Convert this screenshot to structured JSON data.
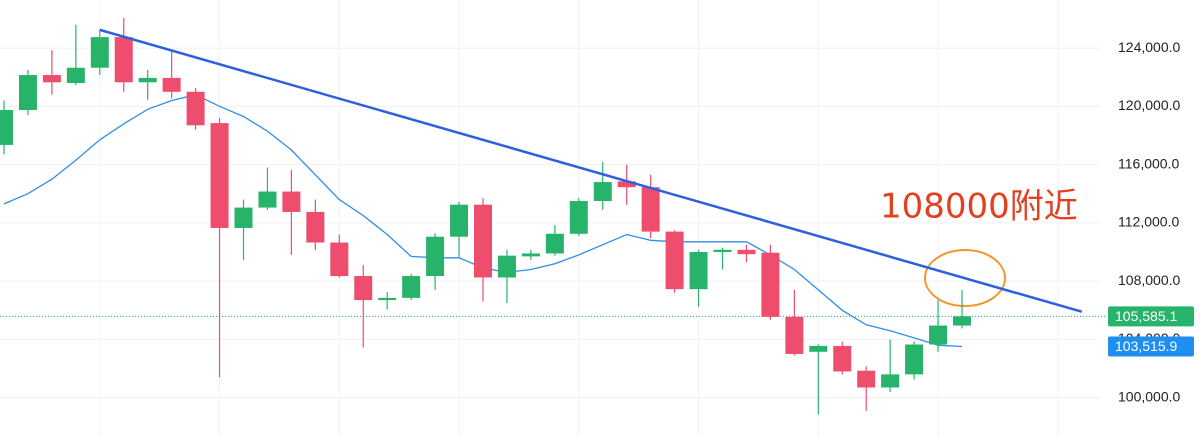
{
  "chart_data": {
    "type": "candlestick",
    "up_color": "#27b46a",
    "down_color": "#ee4d6d",
    "open": [
      117350,
      119750,
      122150,
      121600,
      122650,
      124750,
      121650,
      121950,
      121000,
      118850,
      111650,
      113050,
      114150,
      112750,
      110650,
      108350,
      106700,
      106850,
      108350,
      111050,
      113250,
      108250,
      109700,
      109900,
      111250,
      113500,
      114850,
      114450,
      111400,
      107450,
      110000,
      110150,
      109950,
      105550,
      103150,
      103550,
      101850,
      100700,
      101600,
      103650,
      104950
    ],
    "high": [
      120400,
      122500,
      123850,
      125600,
      125250,
      126050,
      122500,
      123850,
      121250,
      119200,
      113600,
      115800,
      115650,
      113600,
      111200,
      109100,
      107250,
      108500,
      111300,
      113450,
      113700,
      110150,
      110150,
      111850,
      113700,
      116200,
      116000,
      115300,
      111500,
      110150,
      110300,
      110500,
      110500,
      107400,
      103650,
      103850,
      102150,
      104000,
      103850,
      106700,
      107400
    ],
    "low": [
      116700,
      119400,
      120800,
      121450,
      122150,
      121000,
      120450,
      120550,
      118400,
      101400,
      109450,
      112900,
      109800,
      110150,
      108250,
      103450,
      106050,
      106700,
      107400,
      109600,
      106600,
      106500,
      109450,
      109750,
      111100,
      112900,
      113250,
      110950,
      107200,
      106250,
      108800,
      109300,
      105350,
      102900,
      98850,
      101600,
      99100,
      100400,
      101250,
      103150,
      104750
    ],
    "close": [
      119750,
      122150,
      121650,
      122650,
      124750,
      121650,
      121950,
      121000,
      118700,
      111650,
      113050,
      114150,
      112750,
      110650,
      108350,
      106700,
      106850,
      108350,
      111050,
      113250,
      108250,
      109750,
      109900,
      111250,
      113500,
      114800,
      114450,
      111400,
      107450,
      110000,
      110150,
      109850,
      105550,
      103000,
      103550,
      101800,
      100700,
      101600,
      103650,
      104950,
      105585.1
    ],
    "close_label": "105,585.1",
    "ma": {
      "color": "#2f8fe6",
      "label": "103,515.9",
      "values": [
        113300,
        114000,
        115000,
        116300,
        117700,
        118800,
        119800,
        120400,
        120800,
        120000,
        119300,
        118300,
        117000,
        115300,
        113600,
        112500,
        111200,
        109700,
        109600,
        109600,
        108900,
        108600,
        108800,
        109200,
        109800,
        110500,
        111200,
        110800,
        110700,
        110700,
        110700,
        110700,
        109800,
        108800,
        107400,
        106000,
        105000,
        104600,
        104100,
        103600,
        103515.9
      ]
    },
    "trendline": {
      "color": "#2f5fe0",
      "x": [
        4,
        45
      ],
      "values": [
        125250,
        105900
      ]
    },
    "annotation": "108000附近",
    "ylim": [
      97300,
      127300
    ],
    "yticks": [
      {
        "value": 100000,
        "label": "100,000.0"
      },
      {
        "value": 104000,
        "label": "104,000.0"
      },
      {
        "value": 108000,
        "label": "108,000.0"
      },
      {
        "value": 112000,
        "label": "112,000.0"
      },
      {
        "value": 116000,
        "label": "116,000.0"
      },
      {
        "value": 120000,
        "label": "120,000.0"
      },
      {
        "value": 124000,
        "label": "124,000.0"
      }
    ],
    "grid": true
  }
}
